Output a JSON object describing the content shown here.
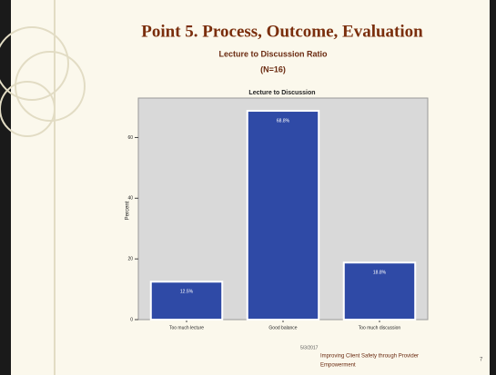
{
  "slide": {
    "title": "Point 5. Process, Outcome, Evaluation",
    "subtitle": "Lecture to Discussion Ratio",
    "subtitle2": "(N=16)",
    "footer_date": "5/3/2017",
    "footer_line1": "Improving Client Safety through Provider",
    "footer_line2": "Empowerment",
    "page_number": "7"
  },
  "chart_data": {
    "type": "bar",
    "title": "Lecture to Discussion",
    "y_label": "Percent",
    "categories": [
      "Too much lecture",
      "Good balance",
      "Too much discussion"
    ],
    "values": [
      12.5,
      68.8,
      18.8
    ],
    "value_labels": [
      "12.5%",
      "68.8%",
      "18.8%"
    ],
    "color": "#2f4aa6",
    "ylim": [
      0,
      73
    ],
    "yticks": [
      0,
      20,
      40,
      60
    ]
  }
}
